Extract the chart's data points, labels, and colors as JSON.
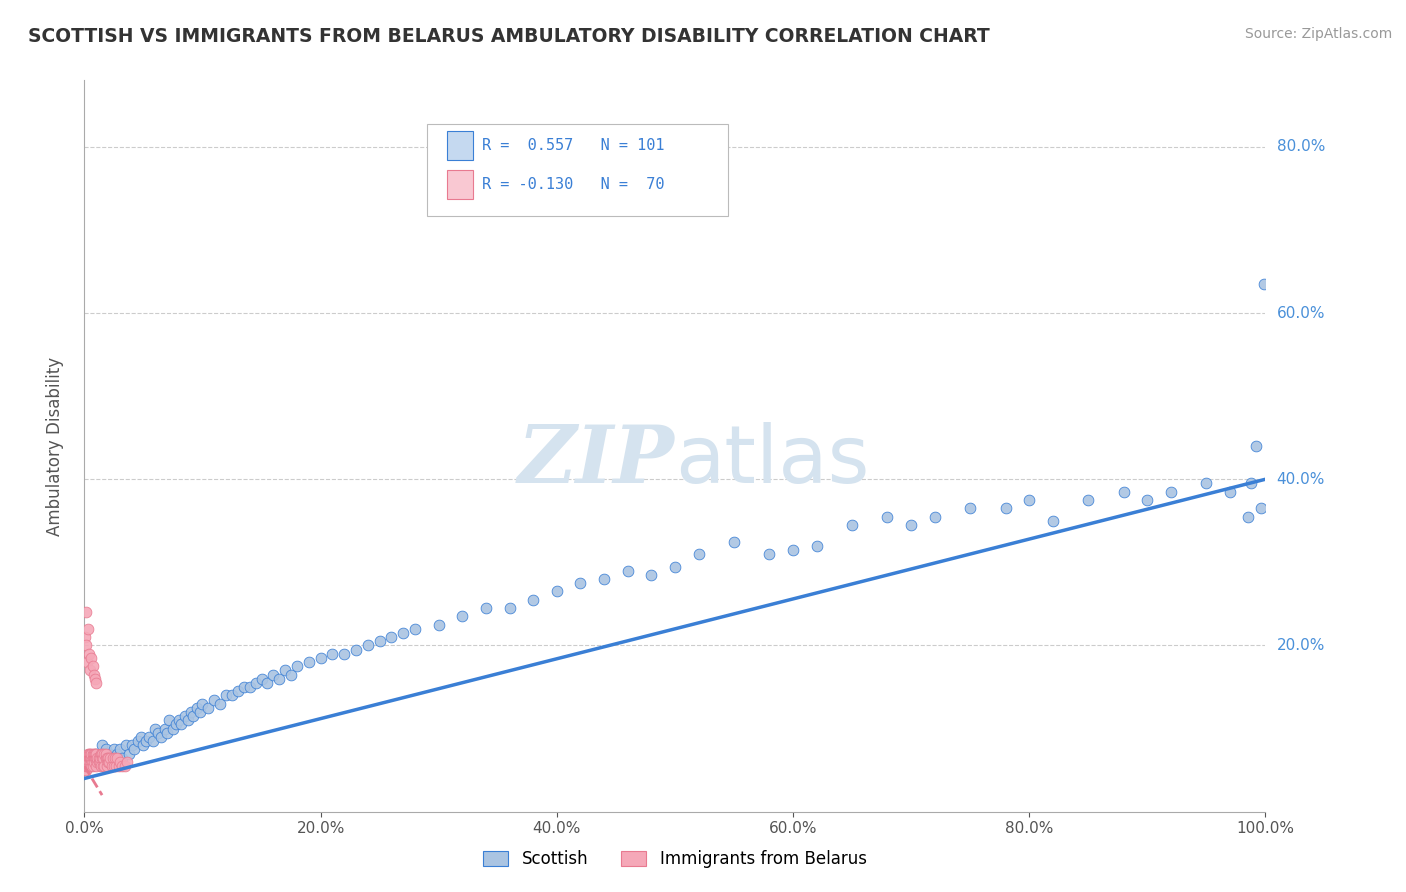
{
  "title": "SCOTTISH VS IMMIGRANTS FROM BELARUS AMBULATORY DISABILITY CORRELATION CHART",
  "source": "Source: ZipAtlas.com",
  "ylabel": "Ambulatory Disability",
  "xlim": [
    0.0,
    1.0
  ],
  "ylim": [
    0.0,
    0.88
  ],
  "xtick_vals": [
    0.0,
    0.2,
    0.4,
    0.6,
    0.8,
    1.0
  ],
  "xtick_labels": [
    "0.0%",
    "20.0%",
    "40.0%",
    "60.0%",
    "80.0%",
    "100.0%"
  ],
  "ytick_vals": [
    0.2,
    0.4,
    0.6,
    0.8
  ],
  "ytick_labels": [
    "20.0%",
    "40.0%",
    "60.0%",
    "80.0%"
  ],
  "legend_entries": [
    "Scottish",
    "Immigrants from Belarus"
  ],
  "R_scottish": 0.557,
  "N_scottish": 101,
  "R_belarus": -0.13,
  "N_belarus": 70,
  "scatter_blue_color": "#aac4e2",
  "scatter_pink_color": "#f5a8b8",
  "line_blue_color": "#3a7fd5",
  "line_pink_color": "#e87a90",
  "legend_box_blue": "#c5d9f0",
  "legend_box_pink": "#f9c8d2",
  "title_color": "#333333",
  "source_color": "#999999",
  "grid_color": "#cccccc",
  "watermark_color": "#d5e3ef",
  "ytick_color": "#4a90d9",
  "blue_line_y0": 0.04,
  "blue_line_y1": 0.4,
  "pink_line_x0": 0.0,
  "pink_line_x1": 0.015,
  "pink_line_y0": 0.055,
  "pink_line_y1": 0.02,
  "scottish_x": [
    0.005,
    0.008,
    0.01,
    0.012,
    0.015,
    0.018,
    0.02,
    0.022,
    0.025,
    0.025,
    0.028,
    0.03,
    0.032,
    0.035,
    0.038,
    0.04,
    0.042,
    0.045,
    0.048,
    0.05,
    0.052,
    0.055,
    0.058,
    0.06,
    0.062,
    0.065,
    0.068,
    0.07,
    0.072,
    0.075,
    0.078,
    0.08,
    0.082,
    0.085,
    0.088,
    0.09,
    0.092,
    0.095,
    0.098,
    0.1,
    0.105,
    0.11,
    0.115,
    0.12,
    0.125,
    0.13,
    0.135,
    0.14,
    0.145,
    0.15,
    0.155,
    0.16,
    0.165,
    0.17,
    0.175,
    0.18,
    0.19,
    0.2,
    0.21,
    0.22,
    0.23,
    0.24,
    0.25,
    0.26,
    0.27,
    0.28,
    0.3,
    0.32,
    0.34,
    0.36,
    0.38,
    0.4,
    0.42,
    0.44,
    0.46,
    0.48,
    0.5,
    0.52,
    0.55,
    0.58,
    0.6,
    0.62,
    0.65,
    0.68,
    0.7,
    0.72,
    0.75,
    0.78,
    0.8,
    0.82,
    0.85,
    0.88,
    0.9,
    0.92,
    0.95,
    0.97,
    0.985,
    0.988,
    0.992,
    0.996,
    0.999
  ],
  "scottish_y": [
    0.055,
    0.065,
    0.07,
    0.06,
    0.08,
    0.075,
    0.065,
    0.07,
    0.075,
    0.06,
    0.07,
    0.075,
    0.065,
    0.08,
    0.07,
    0.08,
    0.075,
    0.085,
    0.09,
    0.08,
    0.085,
    0.09,
    0.085,
    0.1,
    0.095,
    0.09,
    0.1,
    0.095,
    0.11,
    0.1,
    0.105,
    0.11,
    0.105,
    0.115,
    0.11,
    0.12,
    0.115,
    0.125,
    0.12,
    0.13,
    0.125,
    0.135,
    0.13,
    0.14,
    0.14,
    0.145,
    0.15,
    0.15,
    0.155,
    0.16,
    0.155,
    0.165,
    0.16,
    0.17,
    0.165,
    0.175,
    0.18,
    0.185,
    0.19,
    0.19,
    0.195,
    0.2,
    0.205,
    0.21,
    0.215,
    0.22,
    0.225,
    0.235,
    0.245,
    0.245,
    0.255,
    0.265,
    0.275,
    0.28,
    0.29,
    0.285,
    0.295,
    0.31,
    0.325,
    0.31,
    0.315,
    0.32,
    0.345,
    0.355,
    0.345,
    0.355,
    0.365,
    0.365,
    0.375,
    0.35,
    0.375,
    0.385,
    0.375,
    0.385,
    0.395,
    0.385,
    0.355,
    0.395,
    0.44,
    0.365,
    0.635
  ],
  "belarus_x": [
    0.0005,
    0.0008,
    0.001,
    0.0012,
    0.0015,
    0.0018,
    0.002,
    0.002,
    0.0025,
    0.003,
    0.003,
    0.003,
    0.0032,
    0.0035,
    0.004,
    0.004,
    0.004,
    0.0045,
    0.005,
    0.005,
    0.005,
    0.0055,
    0.006,
    0.006,
    0.006,
    0.0065,
    0.007,
    0.007,
    0.0075,
    0.008,
    0.008,
    0.0085,
    0.009,
    0.009,
    0.0095,
    0.01,
    0.01,
    0.011,
    0.011,
    0.012,
    0.012,
    0.013,
    0.013,
    0.014,
    0.014,
    0.015,
    0.015,
    0.016,
    0.016,
    0.017,
    0.017,
    0.018,
    0.018,
    0.019,
    0.019,
    0.02,
    0.02,
    0.021,
    0.022,
    0.023,
    0.024,
    0.025,
    0.026,
    0.027,
    0.028,
    0.029,
    0.03,
    0.032,
    0.034,
    0.036
  ],
  "belarus_y": [
    0.05,
    0.055,
    0.05,
    0.06,
    0.065,
    0.055,
    0.06,
    0.065,
    0.055,
    0.06,
    0.065,
    0.07,
    0.055,
    0.06,
    0.065,
    0.07,
    0.055,
    0.065,
    0.06,
    0.065,
    0.07,
    0.065,
    0.055,
    0.065,
    0.07,
    0.06,
    0.065,
    0.07,
    0.055,
    0.065,
    0.07,
    0.06,
    0.065,
    0.07,
    0.055,
    0.065,
    0.07,
    0.06,
    0.065,
    0.06,
    0.065,
    0.06,
    0.065,
    0.07,
    0.055,
    0.065,
    0.07,
    0.055,
    0.065,
    0.07,
    0.055,
    0.065,
    0.07,
    0.055,
    0.065,
    0.06,
    0.065,
    0.06,
    0.065,
    0.055,
    0.065,
    0.055,
    0.065,
    0.055,
    0.065,
    0.055,
    0.06,
    0.055,
    0.055,
    0.06
  ],
  "belarus_outlier_x": [
    0.0008,
    0.001,
    0.0015,
    0.002,
    0.003,
    0.004,
    0.005,
    0.006,
    0.007,
    0.008,
    0.009,
    0.01
  ],
  "belarus_outlier_y": [
    0.21,
    0.24,
    0.2,
    0.18,
    0.22,
    0.19,
    0.17,
    0.185,
    0.175,
    0.165,
    0.16,
    0.155
  ]
}
